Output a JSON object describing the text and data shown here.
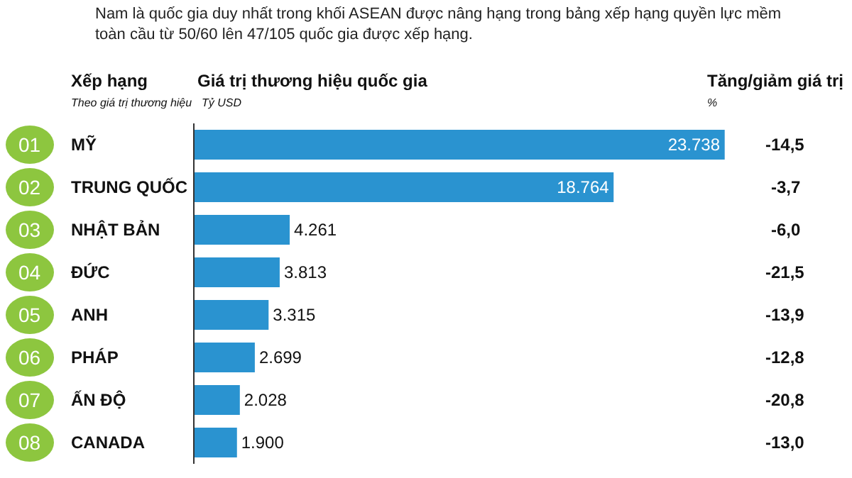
{
  "chart_data": {
    "type": "bar",
    "orientation": "horizontal",
    "subtitle": "Nam là quốc gia duy nhất trong khối ASEAN được nâng hạng trong bảng xếp hạng quyền lực mềm\ntoàn cầu từ 50/60 lên 47/105 quốc gia được xếp hạng.",
    "xlabel": "Giá trị thương hiệu quốc gia",
    "categories": [
      "MỸ",
      "TRUNG QUỐC",
      "NHẬT BẢN",
      "ĐỨC",
      "ANH",
      "PHÁP",
      "ẤN ĐỘ",
      "CANADA"
    ],
    "values": [
      23738,
      18764,
      4261,
      3813,
      3315,
      2699,
      2028,
      1900
    ],
    "value_labels": [
      "23.738",
      "18.764",
      "4.261",
      "3.813",
      "3.315",
      "2.699",
      "2.028",
      "1.900"
    ],
    "color": "#2a93d0",
    "annotations": [
      "Xếp hạng",
      "Theo giá trị thương hiệu",
      "Tỷ USD",
      "Tăng/giảm giá trị",
      "%",
      "01",
      "02",
      "03",
      "04",
      "05",
      "06",
      "07",
      "08",
      "-14,5",
      "-3,7",
      "-6,0",
      "-21,5",
      "-13,9",
      "-12,8",
      "-20,8",
      "-13,0"
    ]
  }
}
